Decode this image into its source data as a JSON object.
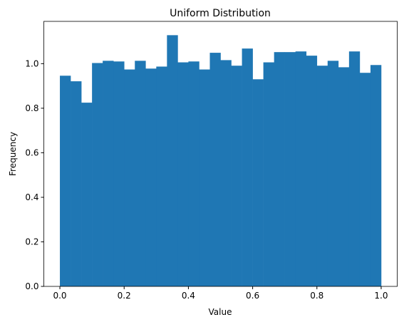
{
  "chart_data": {
    "type": "histogram",
    "title": "Uniform Distribution",
    "x_label": "Value",
    "y_label": "Frequency",
    "bins": [
      0,
      0.0333,
      0.0667,
      0.1,
      0.1333,
      0.1667,
      0.2,
      0.2333,
      0.2667,
      0.3,
      0.3333,
      0.3667,
      0.4,
      0.4333,
      0.4667,
      0.5,
      0.5333,
      0.5667,
      0.6,
      0.6333,
      0.6667,
      0.7,
      0.7333,
      0.7667,
      0.8,
      0.8333,
      0.8667,
      0.9,
      0.9333,
      0.9667,
      1
    ],
    "counts": [
      0.946,
      0.921,
      0.825,
      1.003,
      1.013,
      1.01,
      0.974,
      1.013,
      0.978,
      0.987,
      1.128,
      1.006,
      1.01,
      0.974,
      1.049,
      1.016,
      0.991,
      1.068,
      0.93,
      1.006,
      1.052,
      1.052,
      1.055,
      1.036,
      0.991,
      1.013,
      0.984,
      1.055,
      0.959,
      0.994
    ],
    "color": "#1f77b4",
    "xlim": [
      -0.05,
      1.05
    ],
    "ylim": [
      0,
      1.19
    ],
    "xticks": [
      {
        "value": 0,
        "label": "0.0"
      },
      {
        "value": 0.2,
        "label": "0.2"
      },
      {
        "value": 0.4,
        "label": "0.4"
      },
      {
        "value": 0.6,
        "label": "0.6"
      },
      {
        "value": 0.8,
        "label": "0.8"
      },
      {
        "value": 1,
        "label": "1.0"
      }
    ],
    "yticks": [
      {
        "value": 0,
        "label": "0.0"
      },
      {
        "value": 0.2,
        "label": "0.2"
      },
      {
        "value": 0.4,
        "label": "0.4"
      },
      {
        "value": 0.6,
        "label": "0.6"
      },
      {
        "value": 0.8,
        "label": "0.8"
      },
      {
        "value": 1,
        "label": "1.0"
      }
    ]
  }
}
